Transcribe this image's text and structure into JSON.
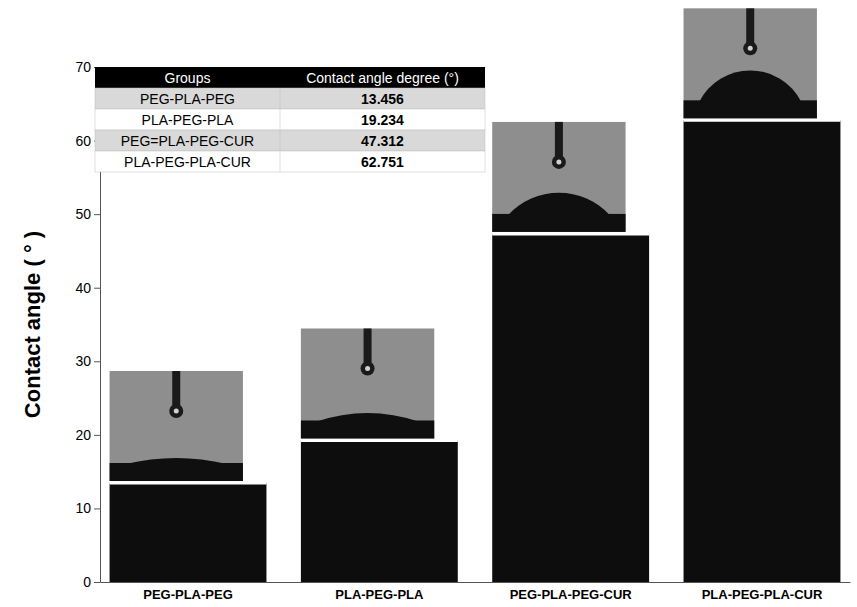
{
  "chart_data": {
    "type": "bar",
    "y_label": "Contact angle ( ° )",
    "categories": [
      "PEG-PLA-PEG",
      "PLA-PEG-PLA",
      "PEG-PLA-PEG-CUR",
      "PLA-PEG-PLA-CUR"
    ],
    "values": [
      13.456,
      19.234,
      47.312,
      62.751
    ],
    "color": "#0d0d0d",
    "ylim": [
      0,
      70
    ],
    "yticks": [
      0,
      10,
      20,
      30,
      40,
      50,
      60,
      70
    ],
    "grid": false,
    "table": {
      "columns": [
        "Groups",
        "Contact angle degree (°)"
      ],
      "rows": [
        [
          "PEG-PLA-PEG",
          13.456
        ],
        [
          "PLA-PEG-PLA",
          19.234
        ],
        [
          "PEG=PLA-PEG-CUR",
          47.312
        ],
        [
          "PLA-PEG-PLA-CUR",
          62.751
        ]
      ]
    }
  }
}
